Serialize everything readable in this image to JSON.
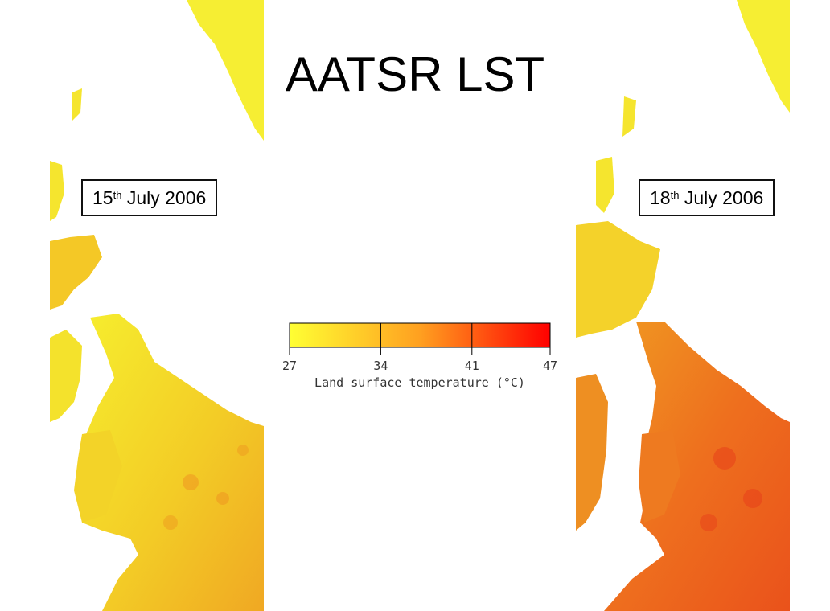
{
  "title": "AATSR LST",
  "panels": [
    {
      "date_day": "15",
      "date_suffix": "th",
      "date_rest": " July 2006"
    },
    {
      "date_day": "18",
      "date_suffix": "th",
      "date_rest": " July 2006"
    }
  ],
  "colorbar": {
    "label": "Land surface temperature (°C)",
    "ticks": [
      "27",
      "34",
      "41",
      "47"
    ],
    "tick_values": [
      27,
      34,
      41,
      47
    ],
    "range": [
      27,
      47
    ],
    "colors": [
      "#ffff33",
      "#ffa020",
      "#ff0000"
    ]
  },
  "colors": {
    "cool": "#f5e82a",
    "mid": "#f4b020",
    "warm": "#ef6a1e",
    "hot": "#e8481a"
  }
}
